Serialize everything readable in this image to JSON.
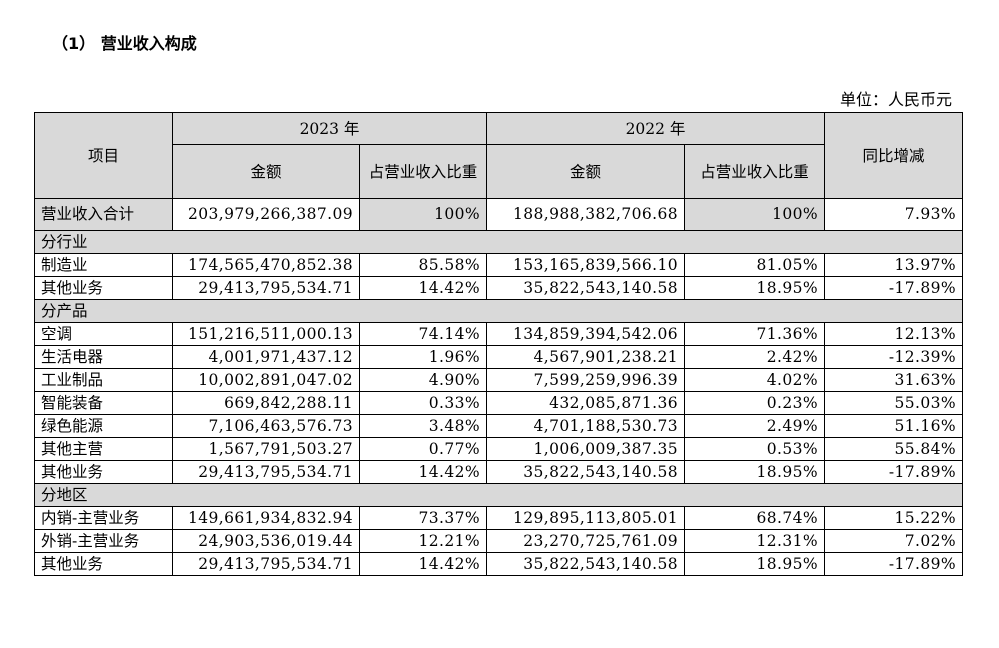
{
  "section_title": "（1）  营业收入构成",
  "unit": "单位：人民币元",
  "header": {
    "item": "项目",
    "year_a": "2023 年",
    "year_b": "2022 年",
    "amount": "金额",
    "share_a": "占营业收入比重",
    "share_b": "占营业收入比重",
    "yoy": "同比增减"
  },
  "total": {
    "label": "营业收入合计",
    "amt_2023": "203,979,266,387.09",
    "pct_2023": "100%",
    "amt_2022": "188,988,382,706.68",
    "pct_2022": "100%",
    "yoy": "7.93%"
  },
  "sections": [
    {
      "title": "分行业",
      "rows": [
        {
          "label": "制造业",
          "amt_2023": "174,565,470,852.38",
          "pct_2023": "85.58%",
          "amt_2022": "153,165,839,566.10",
          "pct_2022": "81.05%",
          "yoy": "13.97%"
        },
        {
          "label": "其他业务",
          "amt_2023": "29,413,795,534.71",
          "pct_2023": "14.42%",
          "amt_2022": "35,822,543,140.58",
          "pct_2022": "18.95%",
          "yoy": "-17.89%"
        }
      ]
    },
    {
      "title": "分产品",
      "rows": [
        {
          "label": "空调",
          "amt_2023": "151,216,511,000.13",
          "pct_2023": "74.14%",
          "amt_2022": "134,859,394,542.06",
          "pct_2022": "71.36%",
          "yoy": "12.13%"
        },
        {
          "label": "生活电器",
          "amt_2023": "4,001,971,437.12",
          "pct_2023": "1.96%",
          "amt_2022": "4,567,901,238.21",
          "pct_2022": "2.42%",
          "yoy": "-12.39%"
        },
        {
          "label": "工业制品",
          "amt_2023": "10,002,891,047.02",
          "pct_2023": "4.90%",
          "amt_2022": "7,599,259,996.39",
          "pct_2022": "4.02%",
          "yoy": "31.63%"
        },
        {
          "label": "智能装备",
          "amt_2023": "669,842,288.11",
          "pct_2023": "0.33%",
          "amt_2022": "432,085,871.36",
          "pct_2022": "0.23%",
          "yoy": "55.03%"
        },
        {
          "label": "绿色能源",
          "amt_2023": "7,106,463,576.73",
          "pct_2023": "3.48%",
          "amt_2022": "4,701,188,530.73",
          "pct_2022": "2.49%",
          "yoy": "51.16%"
        },
        {
          "label": "其他主营",
          "amt_2023": "1,567,791,503.27",
          "pct_2023": "0.77%",
          "amt_2022": "1,006,009,387.35",
          "pct_2022": "0.53%",
          "yoy": "55.84%"
        },
        {
          "label": "其他业务",
          "amt_2023": "29,413,795,534.71",
          "pct_2023": "14.42%",
          "amt_2022": "35,822,543,140.58",
          "pct_2022": "18.95%",
          "yoy": "-17.89%"
        }
      ]
    },
    {
      "title": "分地区",
      "rows": [
        {
          "label": "内销-主营业务",
          "amt_2023": "149,661,934,832.94",
          "pct_2023": "73.37%",
          "amt_2022": "129,895,113,805.01",
          "pct_2022": "68.74%",
          "yoy": "15.22%"
        },
        {
          "label": "外销-主营业务",
          "amt_2023": "24,903,536,019.44",
          "pct_2023": "12.21%",
          "amt_2022": "23,270,725,761.09",
          "pct_2022": "12.31%",
          "yoy": "7.02%"
        },
        {
          "label": "其他业务",
          "amt_2023": "29,413,795,534.71",
          "pct_2023": "14.42%",
          "amt_2022": "35,822,543,140.58",
          "pct_2022": "18.95%",
          "yoy": "-17.89%"
        }
      ]
    }
  ]
}
